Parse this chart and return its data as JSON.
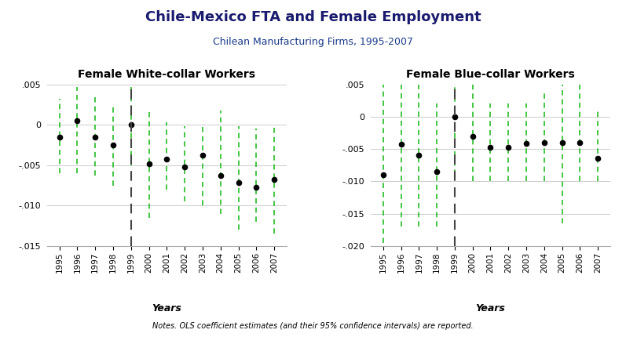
{
  "title": "Chile-Mexico FTA and Female Employment",
  "subtitle": "Chilean Manufacturing Firms, 1995-2007",
  "panel1_title": "Female White-collar Workers",
  "panel2_title": "Female Blue-collar Workers",
  "xlabel": "Years",
  "notes": "Notes. OLS coefficient estimates (and their 95% confidence intervals) are reported.",
  "dashed_line_year": 1999,
  "white_collar": {
    "years": [
      1995,
      1996,
      1997,
      1998,
      1999,
      2000,
      2001,
      2002,
      2003,
      2004,
      2005,
      2006,
      2007
    ],
    "coef": [
      -0.0015,
      0.0005,
      -0.0015,
      -0.0025,
      0.0,
      -0.0048,
      -0.0043,
      -0.0052,
      -0.0038,
      -0.0063,
      -0.0072,
      -0.0077,
      -0.0068
    ],
    "ci_lo": [
      -0.006,
      -0.006,
      -0.0063,
      -0.0075,
      -0.005,
      -0.0115,
      -0.008,
      -0.0095,
      -0.01,
      -0.011,
      -0.013,
      -0.012,
      -0.0135
    ],
    "ci_hi": [
      0.0032,
      0.0047,
      0.0035,
      0.0022,
      0.0048,
      0.0018,
      0.0003,
      -0.0002,
      0.0,
      0.0018,
      -0.0002,
      -0.0005,
      -0.0002
    ]
  },
  "blue_collar": {
    "years": [
      1995,
      1996,
      1997,
      1998,
      1999,
      2000,
      2001,
      2002,
      2003,
      2004,
      2005,
      2006,
      2007
    ],
    "coef": [
      -0.009,
      -0.0043,
      -0.006,
      -0.0085,
      0.0,
      -0.003,
      -0.0048,
      -0.0048,
      -0.0042,
      -0.004,
      -0.004,
      -0.004,
      -0.0065
    ],
    "ci_lo": [
      -0.0195,
      -0.017,
      -0.017,
      -0.017,
      -0.009,
      -0.01,
      -0.01,
      -0.01,
      -0.01,
      -0.01,
      -0.0165,
      -0.01,
      -0.01
    ],
    "ci_hi": [
      0.005,
      0.005,
      0.005,
      0.002,
      0.005,
      0.005,
      0.002,
      0.002,
      0.002,
      0.004,
      0.005,
      0.005,
      0.001
    ]
  },
  "ylim_white": [
    -0.015,
    0.005
  ],
  "ylim_blue": [
    -0.02,
    0.005
  ],
  "yticks_white": [
    -0.015,
    -0.01,
    -0.005,
    0,
    0.005
  ],
  "yticks_blue": [
    -0.02,
    -0.015,
    -0.01,
    -0.005,
    0,
    0.005
  ],
  "dot_color": "black",
  "ci_color": "#22bb22",
  "dashed_color": "#444444",
  "grid_color": "#cccccc",
  "background_color": "white",
  "title_color": "#1a1a6e",
  "subtitle_color": "#1a3a8a"
}
